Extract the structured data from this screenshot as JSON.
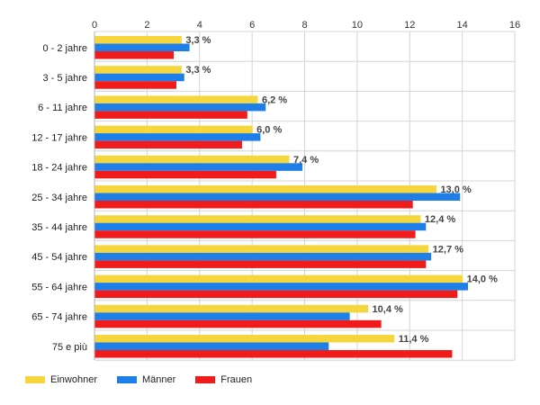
{
  "chart_data": {
    "type": "bar",
    "orientation": "horizontal",
    "categories": [
      "0 - 2 jahre",
      "3 - 5 jahre",
      "6 - 11 jahre",
      "12 - 17 jahre",
      "18 - 24 jahre",
      "25 - 34 jahre",
      "35 - 44 jahre",
      "45 - 54 jahre",
      "55 - 64 jahre",
      "65 - 74 jahre",
      "75 e più"
    ],
    "series": [
      {
        "name": "Einwohner",
        "color": "#F5D63D",
        "values": [
          3.3,
          3.3,
          6.2,
          6.0,
          7.4,
          13.0,
          12.4,
          12.7,
          14.0,
          10.4,
          11.4
        ]
      },
      {
        "name": "Männer",
        "color": "#1F7FE8",
        "values": [
          3.6,
          3.4,
          6.5,
          6.3,
          7.9,
          13.9,
          12.6,
          12.8,
          14.2,
          9.7,
          8.9
        ]
      },
      {
        "name": "Frauen",
        "color": "#F01C1C",
        "values": [
          3.0,
          3.1,
          5.8,
          5.6,
          6.9,
          12.1,
          12.2,
          12.6,
          13.8,
          10.9,
          13.6
        ]
      }
    ],
    "data_labels": [
      "3,3 %",
      "3,3 %",
      "6,2 %",
      "6,0 %",
      "7,4 %",
      "13,0 %",
      "12,4 %",
      "12,7 %",
      "14,0 %",
      "10,4 %",
      "11,4 %"
    ],
    "xlim": [
      0,
      16
    ],
    "x_ticks": [
      "0",
      "2",
      "4",
      "6",
      "8",
      "10",
      "12",
      "14",
      "16"
    ],
    "x_tick_values": [
      0,
      2,
      4,
      6,
      8,
      10,
      12,
      14,
      16
    ],
    "axis_position": "top",
    "grid": true,
    "legend_position": "bottom-left"
  }
}
